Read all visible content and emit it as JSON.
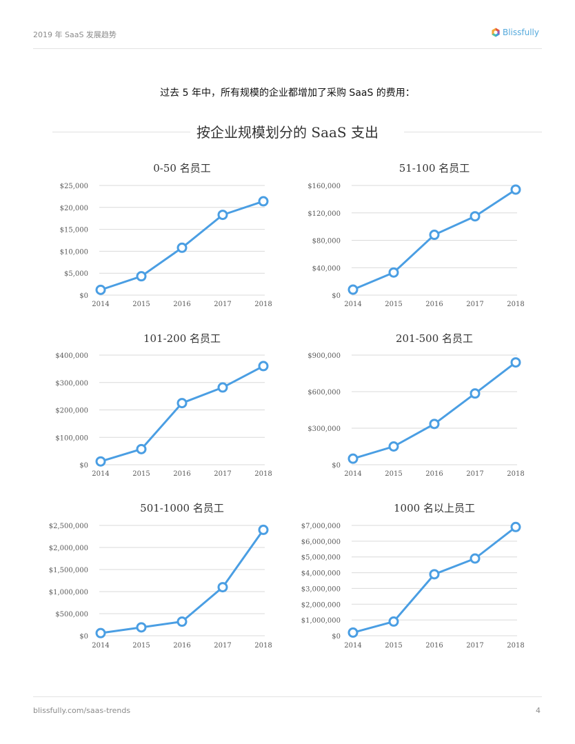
{
  "header": {
    "title": "2019 年 SaaS 发展趋势",
    "brand": "Blissfully"
  },
  "intro": "过去 5 年中，所有规模的企业都增加了采购 SaaS 的费用：",
  "section_title": "按企业规模划分的 SaaS 支出",
  "footer": {
    "url": "blissfully.com/saas-trends",
    "page": "4"
  },
  "colors": {
    "line": "#4a9ee3",
    "grid": "#d9d9d9",
    "axis_text": "#595959"
  },
  "chart_data": [
    {
      "type": "line",
      "title": "0-50 名员工",
      "x": [
        "2014",
        "2015",
        "2016",
        "2017",
        "2018"
      ],
      "values": [
        1200,
        4300,
        10800,
        18300,
        21400
      ],
      "ylim": [
        0,
        25000
      ],
      "y_ticks": [
        {
          "value": 0,
          "label": "$0"
        },
        {
          "value": 5000,
          "label": "$5,000"
        },
        {
          "value": 10000,
          "label": "$10,000"
        },
        {
          "value": 15000,
          "label": "$15,000"
        },
        {
          "value": 20000,
          "label": "$20,000"
        },
        {
          "value": 25000,
          "label": "$25,000"
        }
      ]
    },
    {
      "type": "line",
      "title": "51-100 名员工",
      "x": [
        "2014",
        "2015",
        "2016",
        "2017",
        "2018"
      ],
      "values": [
        8000,
        33000,
        88000,
        115000,
        154000
      ],
      "ylim": [
        0,
        160000
      ],
      "y_ticks": [
        {
          "value": 0,
          "label": "$0"
        },
        {
          "value": 40000,
          "label": "$40,000"
        },
        {
          "value": 80000,
          "label": "$80,000"
        },
        {
          "value": 120000,
          "label": "$120,000"
        },
        {
          "value": 160000,
          "label": "$160,000"
        }
      ]
    },
    {
      "type": "line",
      "title": "101-200 名员工",
      "x": [
        "2014",
        "2015",
        "2016",
        "2017",
        "2018"
      ],
      "values": [
        12000,
        57000,
        225000,
        282000,
        360000
      ],
      "ylim": [
        0,
        400000
      ],
      "y_ticks": [
        {
          "value": 0,
          "label": "$0"
        },
        {
          "value": 100000,
          "label": "$100,000"
        },
        {
          "value": 200000,
          "label": "$200,000"
        },
        {
          "value": 300000,
          "label": "$300,000"
        },
        {
          "value": 400000,
          "label": "$400,000"
        }
      ]
    },
    {
      "type": "line",
      "title": "201-500 名员工",
      "x": [
        "2014",
        "2015",
        "2016",
        "2017",
        "2018"
      ],
      "values": [
        50000,
        150000,
        335000,
        585000,
        840000
      ],
      "ylim": [
        0,
        900000
      ],
      "y_ticks": [
        {
          "value": 0,
          "label": "$0"
        },
        {
          "value": 300000,
          "label": "$300,000"
        },
        {
          "value": 600000,
          "label": "$600,000"
        },
        {
          "value": 900000,
          "label": "$900,000"
        }
      ]
    },
    {
      "type": "line",
      "title": "501-1000 名员工",
      "x": [
        "2014",
        "2015",
        "2016",
        "2017",
        "2018"
      ],
      "values": [
        60000,
        190000,
        320000,
        1100000,
        2400000
      ],
      "ylim": [
        0,
        2500000
      ],
      "y_ticks": [
        {
          "value": 0,
          "label": "$0"
        },
        {
          "value": 500000,
          "label": "$500,000"
        },
        {
          "value": 1000000,
          "label": "$1,000,000"
        },
        {
          "value": 1500000,
          "label": "$1,500,000"
        },
        {
          "value": 2000000,
          "label": "$2,000,000"
        },
        {
          "value": 2500000,
          "label": "$2,500,000"
        }
      ]
    },
    {
      "type": "line",
      "title": "1000 名以上员工",
      "x": [
        "2014",
        "2015",
        "2016",
        "2017",
        "2018"
      ],
      "values": [
        200000,
        900000,
        3900000,
        4900000,
        6900000
      ],
      "ylim": [
        0,
        7000000
      ],
      "y_ticks": [
        {
          "value": 0,
          "label": "$0"
        },
        {
          "value": 1000000,
          "label": "$1,000,000"
        },
        {
          "value": 2000000,
          "label": "$2,000,000"
        },
        {
          "value": 3000000,
          "label": "$3,000,000"
        },
        {
          "value": 4000000,
          "label": "$4,000,000"
        },
        {
          "value": 5000000,
          "label": "$5,000,000"
        },
        {
          "value": 6000000,
          "label": "$6,000,000"
        },
        {
          "value": 7000000,
          "label": "$7,000,000"
        }
      ]
    }
  ]
}
